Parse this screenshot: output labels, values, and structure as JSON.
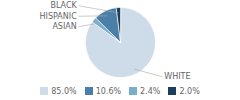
{
  "chart_data": {
    "type": "pie",
    "categories": [
      "WHITE",
      "ASIAN",
      "HISPANIC",
      "BLACK"
    ],
    "values": [
      85.0,
      2.4,
      10.6,
      2.0
    ],
    "value_labels": [
      "85.0%",
      "2.4%",
      "10.6%",
      "2.0%"
    ],
    "colors": [
      "#cddce8",
      "#7aaec8",
      "#4a7fa8",
      "#1c3d5c"
    ],
    "legend": "bottom"
  }
}
